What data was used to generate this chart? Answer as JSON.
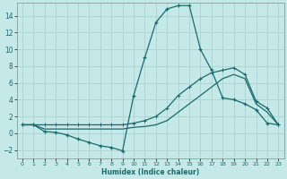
{
  "xlabel": "Humidex (Indice chaleur)",
  "bg_color": "#c5e8e8",
  "grid_color": "#aed4d4",
  "line_color": "#1a6b6b",
  "xlim": [
    -0.5,
    23.5
  ],
  "ylim": [
    -3.0,
    15.5
  ],
  "xticks": [
    0,
    1,
    2,
    3,
    4,
    5,
    6,
    7,
    8,
    9,
    10,
    11,
    12,
    13,
    14,
    15,
    16,
    17,
    18,
    19,
    20,
    21,
    22,
    23
  ],
  "yticks": [
    -2,
    0,
    2,
    4,
    6,
    8,
    10,
    12,
    14
  ],
  "series1_x": [
    0,
    1,
    2,
    3,
    4,
    5,
    6,
    7,
    8,
    9,
    10,
    11,
    12,
    13,
    14,
    15,
    16,
    17,
    18,
    19,
    20,
    21,
    22,
    23
  ],
  "series1_y": [
    1.0,
    1.0,
    0.2,
    0.1,
    -0.2,
    -0.7,
    -1.1,
    -1.5,
    -1.7,
    -2.1,
    4.5,
    9.0,
    13.2,
    14.8,
    15.2,
    15.2,
    10.0,
    7.5,
    4.2,
    4.0,
    3.5,
    2.8,
    1.2,
    1.0
  ],
  "series2_x": [
    0,
    1,
    2,
    3,
    4,
    5,
    6,
    7,
    8,
    9,
    10,
    11,
    12,
    13,
    14,
    15,
    16,
    17,
    18,
    19,
    20,
    21,
    22,
    23
  ],
  "series2_y": [
    1.0,
    1.0,
    1.0,
    1.0,
    1.0,
    1.0,
    1.0,
    1.0,
    1.0,
    1.0,
    1.2,
    1.5,
    2.0,
    3.0,
    4.5,
    5.5,
    6.5,
    7.2,
    7.5,
    7.8,
    7.0,
    3.8,
    3.0,
    1.0
  ],
  "series3_x": [
    0,
    1,
    2,
    3,
    4,
    5,
    6,
    7,
    8,
    9,
    10,
    11,
    12,
    13,
    14,
    15,
    16,
    17,
    18,
    19,
    20,
    21,
    22,
    23
  ],
  "series3_y": [
    1.0,
    1.0,
    0.5,
    0.5,
    0.5,
    0.5,
    0.5,
    0.5,
    0.5,
    0.5,
    0.7,
    0.8,
    1.0,
    1.5,
    2.5,
    3.5,
    4.5,
    5.5,
    6.5,
    7.0,
    6.5,
    3.5,
    2.5,
    1.0
  ]
}
